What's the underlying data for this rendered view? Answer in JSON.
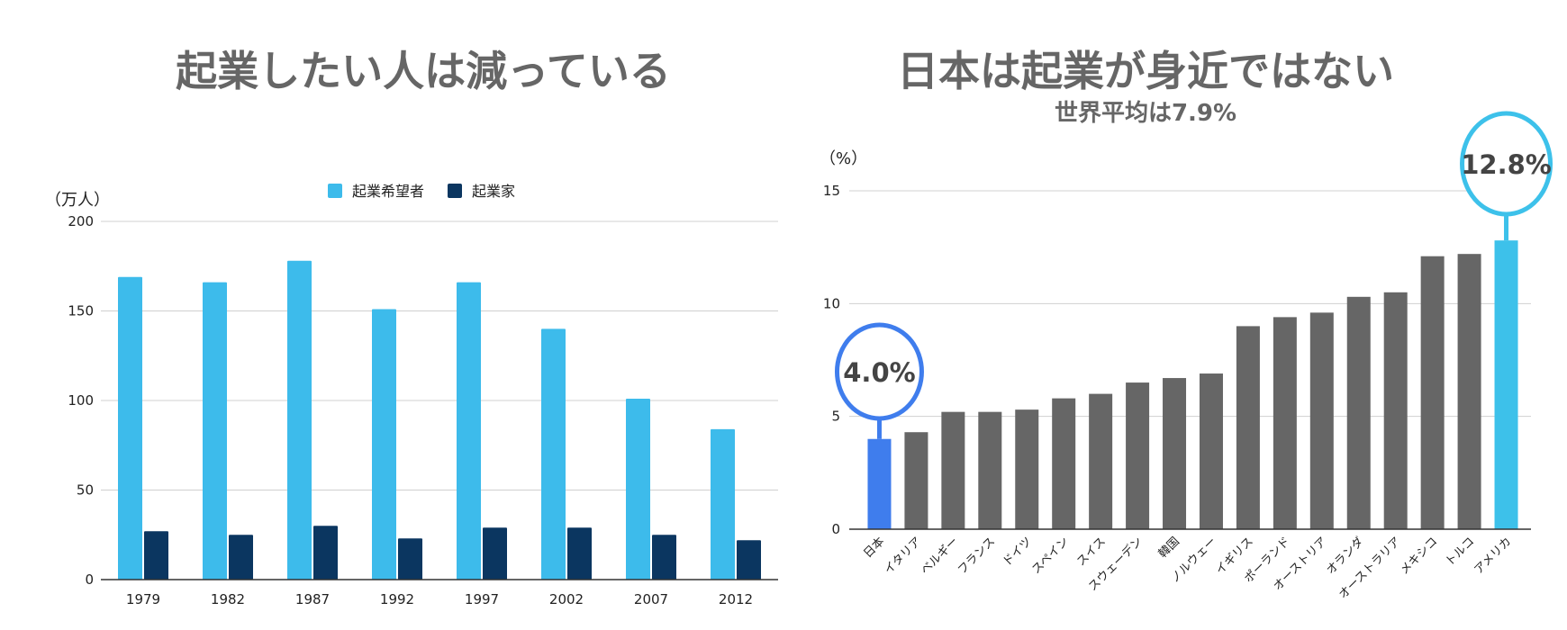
{
  "chart_data": [
    {
      "type": "bar",
      "title": "起業したい人は減っている",
      "ylabel": "（万人）",
      "xlabel": "",
      "ylim": [
        0,
        200
      ],
      "yticks": [
        "0",
        "50",
        "100",
        "150",
        "200"
      ],
      "grid": true,
      "legend_placement": "top",
      "categories": [
        "1979",
        "1982",
        "1987",
        "1992",
        "1997",
        "2002",
        "2007",
        "2012"
      ],
      "series": [
        {
          "name": "起業希望者",
          "color": "#3dbbeb",
          "values": [
            169,
            166,
            178,
            151,
            166,
            140,
            101,
            84
          ]
        },
        {
          "name": "起業家",
          "color": "#0b3660",
          "values": [
            27,
            25,
            30,
            23,
            29,
            29,
            25,
            22
          ]
        }
      ]
    },
    {
      "type": "bar",
      "title": "日本は起業が身近ではない",
      "subtitle": "世界平均は7.9%",
      "ylabel": "（%）",
      "xlabel": "",
      "ylim": [
        0,
        15
      ],
      "yticks": [
        "0",
        "5",
        "10",
        "15"
      ],
      "grid": true,
      "categories": [
        "日本",
        "イタリア",
        "ベルギー",
        "フランス",
        "ドイツ",
        "スペイン",
        "スイス",
        "スウェーデン",
        "韓国",
        "ノルウェー",
        "イギリス",
        "ポーランド",
        "オーストリア",
        "オランダ",
        "オーストラリア",
        "メキシコ",
        "トルコ",
        "アメリカ"
      ],
      "values": [
        4.0,
        4.3,
        5.2,
        5.2,
        5.3,
        5.8,
        6.0,
        6.5,
        6.7,
        6.9,
        9.0,
        9.4,
        9.6,
        10.3,
        10.5,
        12.1,
        12.2,
        12.8
      ],
      "colors": {
        "default": "#666666",
        "japan": "#3f7ded",
        "usa": "#3dc1ea"
      },
      "annotations": [
        {
          "category": "日本",
          "text": "4.0%"
        },
        {
          "category": "アメリカ",
          "text": "12.8%"
        }
      ]
    }
  ]
}
